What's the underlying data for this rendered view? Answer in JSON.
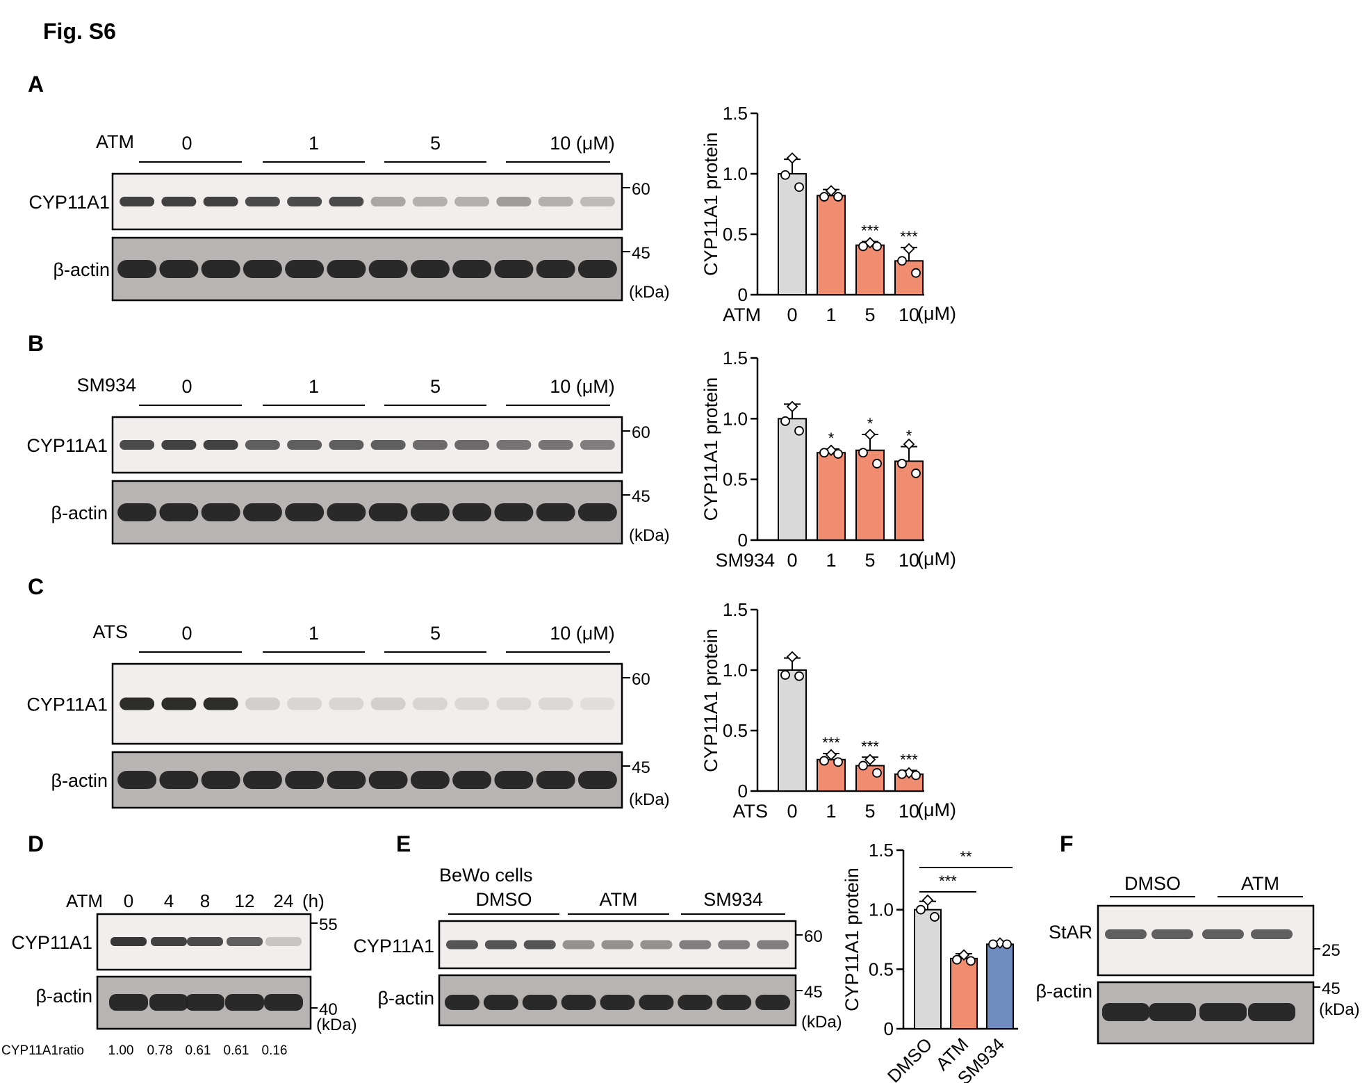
{
  "figure": {
    "title": "Fig. S6",
    "panel_labels": [
      "A",
      "B",
      "C",
      "D",
      "E",
      "F"
    ]
  },
  "colors": {
    "control_bar": "#d9d9d9",
    "treated_bar": "#f08c70",
    "sm934_bar": "#6f8cbf",
    "blot_background": "#f2eeed",
    "actin_background": "#b8b4b3",
    "band_color": "#222222"
  },
  "panels": {
    "A": {
      "treatment": "ATM",
      "doses": [
        "0",
        "1",
        "5",
        "10 (μM)"
      ],
      "rows": [
        "CYP11A1",
        "β-actin"
      ],
      "markers": [
        "60",
        "45"
      ],
      "unit": "(kDa)"
    },
    "B": {
      "treatment": "SM934",
      "doses": [
        "0",
        "1",
        "5",
        "10 (μM)"
      ],
      "rows": [
        "CYP11A1",
        "β-actin"
      ],
      "markers": [
        "60",
        "45"
      ],
      "unit": "(kDa)"
    },
    "C": {
      "treatment": "ATS",
      "doses": [
        "0",
        "1",
        "5",
        "10 (μM)"
      ],
      "rows": [
        "CYP11A1",
        "β-actin"
      ],
      "markers": [
        "60",
        "45"
      ],
      "unit": "(kDa)"
    },
    "D": {
      "treatment": "ATM",
      "times": [
        "0",
        "4",
        "8",
        "12",
        "24"
      ],
      "time_unit": "(h)",
      "rows": [
        "CYP11A1",
        "β-actin"
      ],
      "markers": [
        "55",
        "40"
      ],
      "unit": "(kDa)",
      "ratio_label": "CYP11A1ratio",
      "ratios": [
        "1.00",
        "0.78",
        "0.61",
        "0.61",
        "0.16"
      ]
    },
    "E": {
      "cell_line": "BeWo cells",
      "groups": [
        "DMSO",
        "ATM",
        "SM934"
      ],
      "rows": [
        "CYP11A1",
        "β-actin"
      ],
      "markers": [
        "60",
        "45"
      ],
      "unit": "(kDa)"
    },
    "F": {
      "groups": [
        "DMSO",
        "ATM"
      ],
      "rows": [
        "StAR",
        "β-actin"
      ],
      "markers": [
        "25",
        "45"
      ],
      "unit": "(kDa)"
    }
  },
  "chart_data": [
    {
      "id": "A",
      "type": "bar",
      "ylabel": "CYP11A1 protein",
      "xlabel_prefix": "ATM",
      "categories": [
        "0",
        "1",
        "5",
        "10"
      ],
      "unit": "(μM)",
      "values": [
        1.0,
        0.82,
        0.41,
        0.28
      ],
      "errors": [
        0.12,
        0.05,
        0.03,
        0.11
      ],
      "points": [
        [
          1.13,
          0.99,
          0.89
        ],
        [
          0.86,
          0.81,
          0.81
        ],
        [
          0.43,
          0.4,
          0.4
        ],
        [
          0.38,
          0.28,
          0.18
        ]
      ],
      "significance": [
        "",
        "",
        "***",
        "***"
      ],
      "yticks": [
        "0",
        "0.5",
        "1.0",
        "1.5"
      ],
      "ylim": [
        0,
        1.5
      ]
    },
    {
      "id": "B",
      "type": "bar",
      "ylabel": "CYP11A1 protein",
      "xlabel_prefix": "SM934",
      "categories": [
        "0",
        "1",
        "5",
        "10"
      ],
      "unit": "(μM)",
      "values": [
        1.0,
        0.72,
        0.74,
        0.65
      ],
      "errors": [
        0.12,
        0.03,
        0.13,
        0.12
      ],
      "points": [
        [
          1.1,
          0.98,
          0.9
        ],
        [
          0.74,
          0.72,
          0.71
        ],
        [
          0.87,
          0.72,
          0.63
        ],
        [
          0.79,
          0.63,
          0.55
        ]
      ],
      "significance": [
        "",
        "*",
        "*",
        "*"
      ],
      "yticks": [
        "0",
        "0.5",
        "1.0",
        "1.5"
      ],
      "ylim": [
        0,
        1.5
      ]
    },
    {
      "id": "C",
      "type": "bar",
      "ylabel": "CYP11A1 protein",
      "xlabel_prefix": "ATS",
      "categories": [
        "0",
        "1",
        "5",
        "10"
      ],
      "unit": "(μM)",
      "values": [
        1.0,
        0.26,
        0.21,
        0.14
      ],
      "errors": [
        0.1,
        0.05,
        0.07,
        0.03
      ],
      "points": [
        [
          1.11,
          0.96,
          0.95
        ],
        [
          0.3,
          0.25,
          0.24
        ],
        [
          0.26,
          0.21,
          0.15
        ],
        [
          0.15,
          0.14,
          0.13
        ]
      ],
      "significance": [
        "",
        "***",
        "***",
        "***"
      ],
      "yticks": [
        "0",
        "0.5",
        "1.0",
        "1.5"
      ],
      "ylim": [
        0,
        1.5
      ]
    },
    {
      "id": "E",
      "type": "bar",
      "ylabel": "CYP11A1 protein",
      "categories": [
        "DMSO",
        "ATM",
        "SM934"
      ],
      "values": [
        1.0,
        0.59,
        0.71
      ],
      "errors": [
        0.07,
        0.04,
        0.01
      ],
      "points": [
        [
          1.08,
          1.0,
          0.94
        ],
        [
          0.62,
          0.58,
          0.57
        ],
        [
          0.72,
          0.71,
          0.71
        ]
      ],
      "comparisons": [
        {
          "from": 0,
          "to": 1,
          "label": "***"
        },
        {
          "from": 0,
          "to": 2,
          "label": "**"
        }
      ],
      "yticks": [
        "0",
        "0.5",
        "1.0",
        "1.5"
      ],
      "ylim": [
        0,
        1.5
      ]
    }
  ]
}
